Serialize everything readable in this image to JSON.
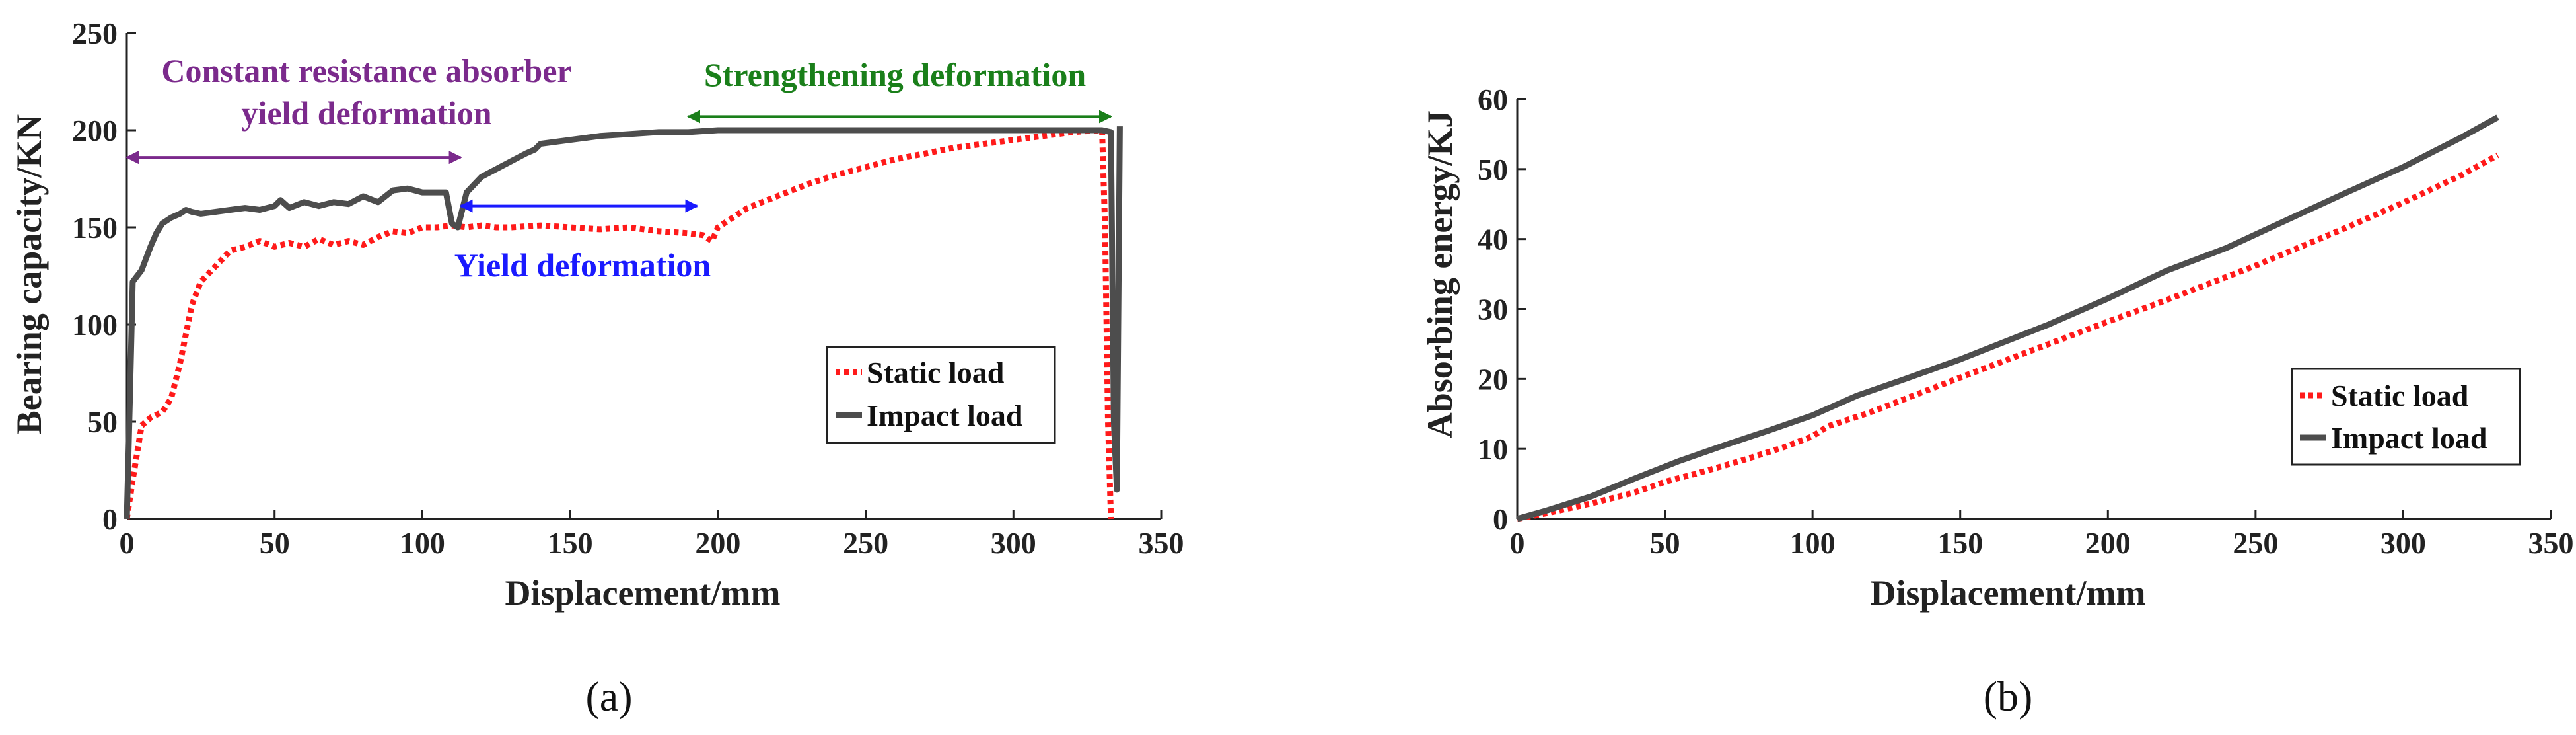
{
  "figure": {
    "panels": [
      "(a)",
      "(b)"
    ]
  },
  "colors": {
    "static": "#ff1a1a",
    "impact": "#4d4d4d",
    "purple": "#7b2a8c",
    "green": "#1a7f1a",
    "blue": "#1a1aff"
  },
  "chart_data": [
    {
      "type": "line",
      "panel": "(a)",
      "xlabel": "Displacement/mm",
      "ylabel": "Bearing capacity/KN",
      "xlim": [
        0,
        350
      ],
      "ylim": [
        0,
        250
      ],
      "xticks": [
        0,
        50,
        100,
        150,
        200,
        250,
        300,
        350
      ],
      "yticks": [
        0,
        50,
        100,
        150,
        200,
        250
      ],
      "grid": false,
      "legend_position": "right-middle",
      "series": [
        {
          "name": "Static load",
          "style": "dotted",
          "x": [
            0,
            2,
            5,
            8,
            12,
            15,
            18,
            22,
            25,
            30,
            35,
            40,
            45,
            50,
            55,
            60,
            65,
            70,
            75,
            80,
            85,
            90,
            95,
            100,
            105,
            110,
            115,
            120,
            125,
            130,
            140,
            150,
            160,
            170,
            180,
            190,
            195,
            198,
            200,
            210,
            220,
            230,
            240,
            250,
            260,
            270,
            280,
            290,
            300,
            310,
            320,
            330,
            331,
            332,
            333
          ],
          "y": [
            0,
            20,
            48,
            52,
            55,
            62,
            80,
            110,
            122,
            130,
            138,
            140,
            143,
            140,
            142,
            140,
            144,
            141,
            143,
            141,
            145,
            148,
            147,
            150,
            150,
            151,
            150,
            151,
            150,
            150,
            151,
            150,
            149,
            150,
            148,
            147,
            146,
            143,
            150,
            160,
            166,
            172,
            177,
            181,
            185,
            188,
            191,
            193,
            195,
            197,
            199,
            200,
            150,
            50,
            0
          ]
        },
        {
          "name": "Impact load",
          "style": "solid",
          "x": [
            0,
            1,
            2,
            5,
            8,
            10,
            12,
            15,
            18,
            20,
            22,
            25,
            30,
            35,
            40,
            45,
            50,
            52,
            55,
            60,
            65,
            70,
            75,
            80,
            85,
            90,
            95,
            100,
            105,
            108,
            110,
            112,
            115,
            120,
            125,
            130,
            135,
            138,
            140,
            150,
            160,
            170,
            180,
            190,
            200,
            250,
            300,
            320,
            330,
            333,
            334,
            335,
            336
          ],
          "y": [
            0,
            60,
            122,
            128,
            140,
            147,
            152,
            155,
            157,
            159,
            158,
            157,
            158,
            159,
            160,
            159,
            161,
            164,
            160,
            163,
            161,
            163,
            162,
            166,
            163,
            169,
            170,
            168,
            168,
            168,
            152,
            150,
            168,
            176,
            180,
            184,
            188,
            190,
            193,
            195,
            197,
            198,
            199,
            199,
            200,
            200,
            200,
            200,
            200,
            199,
            50,
            15,
            202
          ]
        }
      ],
      "annotations": [
        {
          "text_lines": [
            "Constant resistance absorber",
            "yield deformation"
          ],
          "color": "purple",
          "arrow_x": [
            0,
            113
          ],
          "arrow_y": 186
        },
        {
          "text_lines": [
            "Strengthening deformation"
          ],
          "color": "green",
          "arrow_x": [
            190,
            333
          ],
          "arrow_y": 207
        },
        {
          "text_lines": [
            "Yield deformation"
          ],
          "color": "blue",
          "arrow_x": [
            113,
            193
          ],
          "arrow_y": 161
        }
      ]
    },
    {
      "type": "line",
      "panel": "(b)",
      "xlabel": "Displacement/mm",
      "ylabel": "Absorbing energy/KJ",
      "xlim": [
        0,
        350
      ],
      "ylim": [
        0,
        60
      ],
      "xticks": [
        0,
        50,
        100,
        150,
        200,
        250,
        300,
        350
      ],
      "yticks": [
        0,
        10,
        20,
        30,
        40,
        50,
        60
      ],
      "grid": false,
      "legend_position": "right-middle",
      "series": [
        {
          "name": "Static load",
          "style": "dotted",
          "x": [
            0,
            10,
            25,
            40,
            50,
            60,
            75,
            90,
            100,
            105,
            120,
            150,
            180,
            200,
            220,
            250,
            280,
            300,
            320,
            332
          ],
          "y": [
            0,
            0.8,
            2.2,
            3.8,
            5.3,
            6.4,
            8.2,
            10.2,
            11.8,
            13.2,
            15.3,
            20.2,
            25.0,
            28.2,
            31.3,
            36.2,
            41.5,
            45.2,
            49.2,
            52.0
          ]
        },
        {
          "name": "Impact load",
          "style": "solid",
          "x": [
            0,
            10,
            25,
            40,
            55,
            70,
            85,
            100,
            115,
            130,
            150,
            165,
            180,
            200,
            220,
            240,
            260,
            280,
            300,
            320,
            332
          ],
          "y": [
            0,
            1.2,
            3.2,
            5.8,
            8.3,
            10.5,
            12.6,
            14.8,
            17.6,
            19.8,
            22.8,
            25.3,
            27.8,
            31.5,
            35.5,
            38.7,
            42.6,
            46.5,
            50.3,
            54.6,
            57.4
          ]
        }
      ],
      "annotations": []
    }
  ]
}
